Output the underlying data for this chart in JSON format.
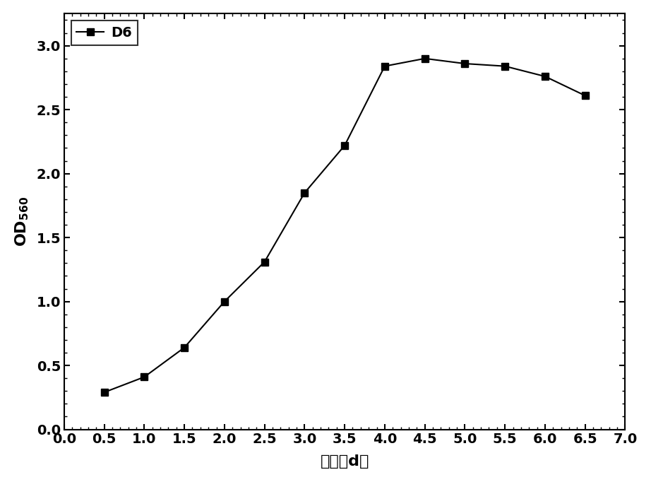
{
  "x": [
    0.5,
    1.0,
    1.5,
    2.0,
    2.5,
    3.0,
    3.5,
    4.0,
    4.5,
    5.0,
    5.5,
    6.0,
    6.5
  ],
  "y": [
    0.29,
    0.41,
    0.64,
    1.0,
    1.31,
    1.85,
    2.22,
    2.84,
    2.9,
    2.86,
    2.84,
    2.76,
    2.61
  ],
  "xlim": [
    0.0,
    7.0
  ],
  "ylim": [
    0.0,
    3.25
  ],
  "xticks": [
    0.0,
    0.5,
    1.0,
    1.5,
    2.0,
    2.5,
    3.0,
    3.5,
    4.0,
    4.5,
    5.0,
    5.5,
    6.0,
    6.5,
    7.0
  ],
  "yticks": [
    0.0,
    0.5,
    1.0,
    1.5,
    2.0,
    2.5,
    3.0
  ],
  "xlabel": "时间（d）",
  "ylabel": "OD$_{560}$",
  "legend_label": "D6",
  "line_color": "#000000",
  "marker": "s",
  "marker_size": 7,
  "line_width": 1.5,
  "tick_fontsize": 14,
  "label_fontsize": 16,
  "font_weight": "bold"
}
